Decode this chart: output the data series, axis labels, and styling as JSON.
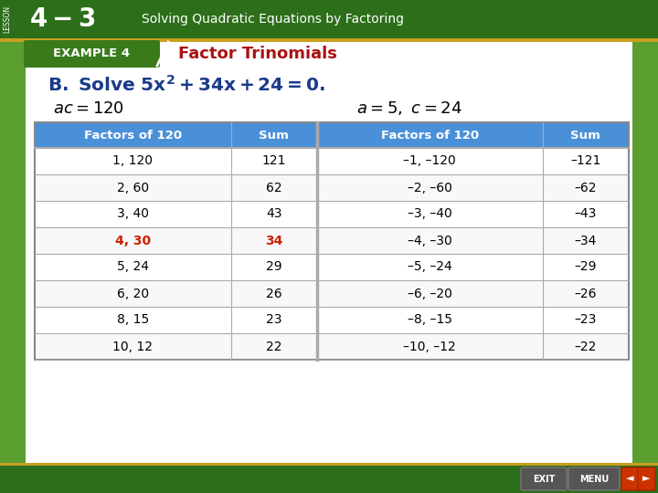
{
  "outer_bg": "#5a9e30",
  "white_bg": "#ffffff",
  "top_bar_color": "#2d6e1a",
  "top_bar_accent": "#c8a020",
  "title_43": "4–3",
  "title_subtitle": "Solving Quadratic Equations by Factoring",
  "lesson_label": "LESSON",
  "example_label": "EXAMPLE 4",
  "example_label_bg": "#3a7a1a",
  "example_title": "Factor Trinomials",
  "example_title_color": "#aa1111",
  "problem_line": "B. Solve 5x² + 34x + 24 = 0.",
  "ac_text": "ac = 120",
  "a5c24_text": "a = 5, c = 24",
  "header_bg": "#4a90d9",
  "header_text_color": "#ffffff",
  "col_headers": [
    "Factors of 120",
    "Sum",
    "Factors of 120",
    "Sum"
  ],
  "highlight_color": "#cc2200",
  "rows": [
    [
      "1, 120",
      "121",
      "–1, –120",
      "–121"
    ],
    [
      "2, 60",
      "62",
      "–2, –60",
      "–62"
    ],
    [
      "3, 40",
      "43",
      "–3, –40",
      "–43"
    ],
    [
      "4, 30",
      "34",
      "–4, –30",
      "–34"
    ],
    [
      "5, 24",
      "29",
      "–5, –24",
      "–29"
    ],
    [
      "6, 20",
      "26",
      "–6, –20",
      "–26"
    ],
    [
      "8, 15",
      "23",
      "–8, –15",
      "–23"
    ],
    [
      "10, 12",
      "22",
      "–10, –12",
      "–22"
    ]
  ],
  "highlight_row": 3,
  "table_border_color": "#888888",
  "table_line_color": "#aaaaaa",
  "bottom_bar_color": "#2d6e1a",
  "bottom_accent_color": "#c8a020"
}
